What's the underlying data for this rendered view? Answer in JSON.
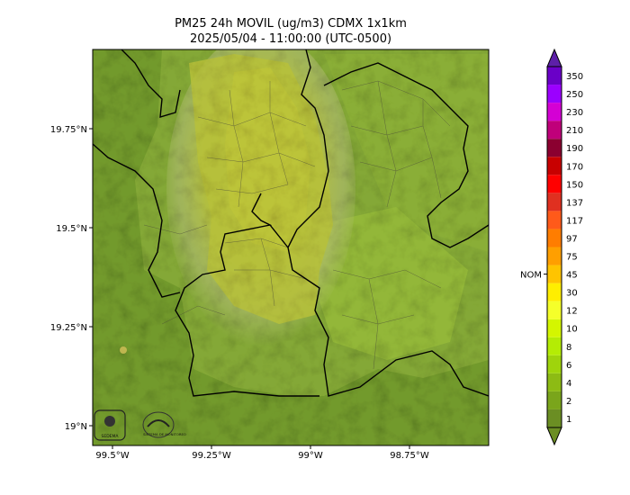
{
  "title_line1": "PM25 24h MOVIL (ug/m3) CDMX 1x1km",
  "title_line2": "2025/05/04 - 11:00:00 (UTC-0500)",
  "lon_ticks": [
    {
      "label": "99.5°W",
      "lon": -99.5
    },
    {
      "label": "99.25°W",
      "lon": -99.25
    },
    {
      "label": "99°W",
      "lon": -99.0
    },
    {
      "label": "98.75°W",
      "lon": -98.75
    }
  ],
  "lat_ticks": [
    {
      "label": "19.75°N",
      "lat": 19.75
    },
    {
      "label": "19.5°N",
      "lat": 19.5
    },
    {
      "label": "19.25°N",
      "lat": 19.25
    },
    {
      "label": "19°N",
      "lat": 19.0
    }
  ],
  "map_extent": {
    "lon_min": -99.55,
    "lon_max": -98.55,
    "lat_min": 18.95,
    "lat_max": 19.95
  },
  "colorbar": {
    "levels": [
      "1",
      "2",
      "4",
      "6",
      "8",
      "10",
      "12",
      "30",
      "45",
      "75",
      "97",
      "117",
      "137",
      "150",
      "170",
      "190",
      "210",
      "230",
      "250",
      "350"
    ],
    "colors": [
      "#6b8e23",
      "#7aa51b",
      "#8dbb14",
      "#9fd40c",
      "#b4ec05",
      "#d4f600",
      "#f5ff2a",
      "#ffee00",
      "#ffc400",
      "#ff9f00",
      "#ff7d00",
      "#ff5a1a",
      "#e03020",
      "#ff0000",
      "#c80000",
      "#8b0030",
      "#c0007a",
      "#d400d4",
      "#9b00ff",
      "#6a00c8"
    ],
    "extend_low_color": "#6b8e23",
    "extend_high_color": "#5d1fa8",
    "nom_label": "NOM",
    "nom_value": 45
  },
  "logos": {
    "left_logo_text": "SEDEMA",
    "right_logo_text": "SISTEMA DE MONITOREO"
  }
}
